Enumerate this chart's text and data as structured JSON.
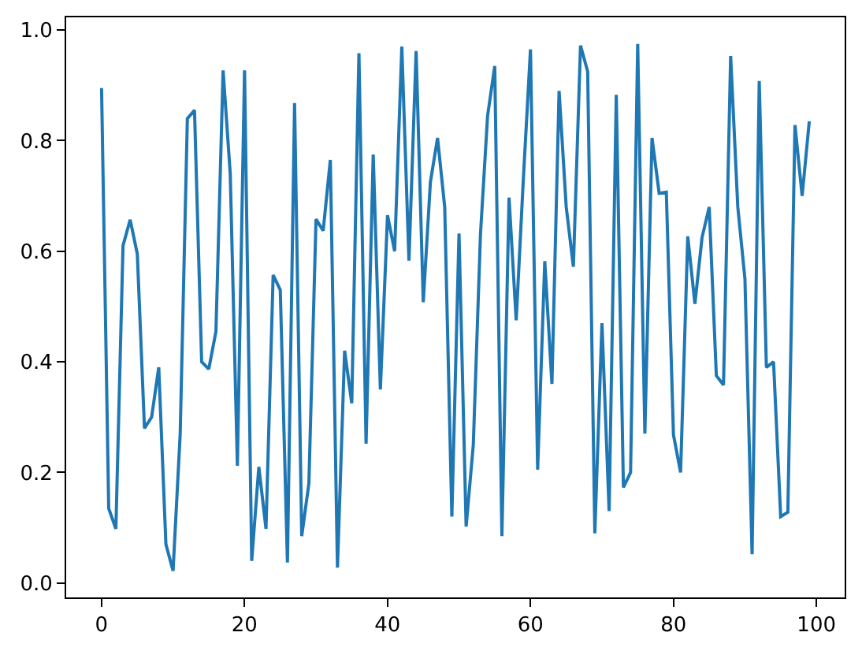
{
  "chart_data": {
    "type": "line",
    "x": [
      0,
      1,
      2,
      3,
      4,
      5,
      6,
      7,
      8,
      9,
      10,
      11,
      12,
      13,
      14,
      15,
      16,
      17,
      18,
      19,
      20,
      21,
      22,
      23,
      24,
      25,
      26,
      27,
      28,
      29,
      30,
      31,
      32,
      33,
      34,
      35,
      36,
      37,
      38,
      39,
      40,
      41,
      42,
      43,
      44,
      45,
      46,
      47,
      48,
      49,
      50,
      51,
      52,
      53,
      54,
      55,
      56,
      57,
      58,
      59,
      60,
      61,
      62,
      63,
      64,
      65,
      66,
      67,
      68,
      69,
      70,
      71,
      72,
      73,
      74,
      75,
      76,
      77,
      78,
      79,
      80,
      81,
      82,
      83,
      84,
      85,
      86,
      87,
      88,
      89,
      90,
      91,
      92,
      93,
      94,
      95,
      96,
      97,
      98,
      99
    ],
    "values": [
      0.895,
      0.135,
      0.098,
      0.61,
      0.657,
      0.595,
      0.28,
      0.3,
      0.39,
      0.07,
      0.022,
      0.27,
      0.84,
      0.855,
      0.4,
      0.387,
      0.455,
      0.927,
      0.74,
      0.212,
      0.927,
      0.04,
      0.21,
      0.098,
      0.557,
      0.53,
      0.037,
      0.868,
      0.085,
      0.18,
      0.658,
      0.637,
      0.765,
      0.028,
      0.42,
      0.325,
      0.958,
      0.252,
      0.775,
      0.35,
      0.665,
      0.6,
      0.97,
      0.583,
      0.962,
      0.508,
      0.725,
      0.805,
      0.68,
      0.12,
      0.632,
      0.102,
      0.25,
      0.63,
      0.845,
      0.935,
      0.085,
      0.697,
      0.475,
      0.73,
      0.965,
      0.205,
      0.582,
      0.36,
      0.89,
      0.68,
      0.572,
      0.972,
      0.925,
      0.09,
      0.47,
      0.13,
      0.883,
      0.173,
      0.2,
      0.975,
      0.27,
      0.805,
      0.705,
      0.707,
      0.268,
      0.2,
      0.627,
      0.505,
      0.625,
      0.68,
      0.375,
      0.358,
      0.953,
      0.68,
      0.55,
      0.052,
      0.908,
      0.39,
      0.4,
      0.12,
      0.128,
      0.828,
      0.7,
      0.835
    ],
    "color": "#1f77b4",
    "xlim": [
      -4.95,
      103.95
    ],
    "ylim": [
      -0.026,
      1.023
    ],
    "xticks": [
      0,
      20,
      40,
      60,
      80,
      100
    ],
    "yticks": [
      {
        "value": 0,
        "label": "0.0"
      },
      0.2,
      0.4,
      0.6,
      0.8,
      {
        "value": 1,
        "label": "1.0"
      }
    ],
    "grid": false
  }
}
